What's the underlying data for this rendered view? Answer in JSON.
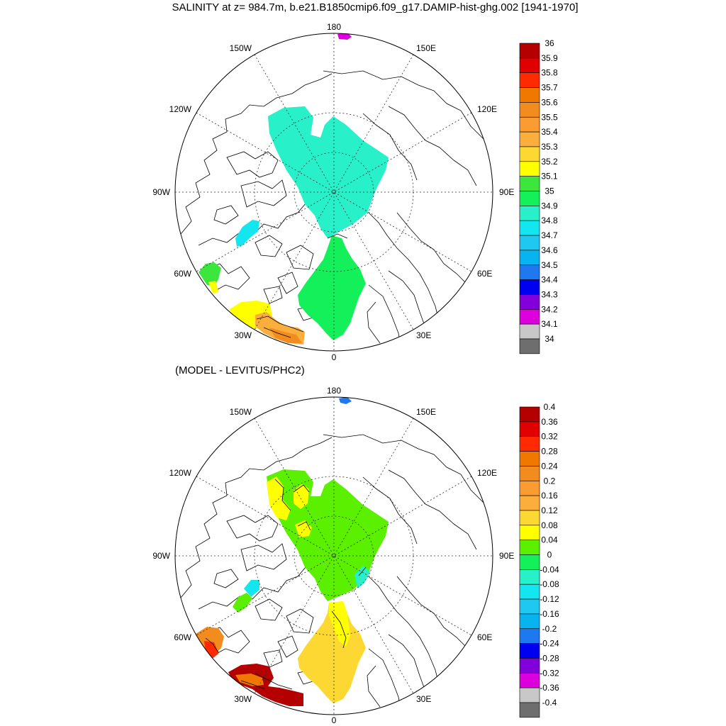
{
  "title": "SALINITY at z= 984.7m, b.e21.B1850cmip6.f09_g17.DAMIP-hist-ghg.002 [1941-1970]",
  "subtitle": "(MODEL - LEVITUS/PHC2)",
  "lon_labels": {
    "top": "180",
    "bottom": "0",
    "left": "90W",
    "right": "90E",
    "w150": "150W",
    "e150": "150E",
    "w120": "120W",
    "e120": "120E",
    "w60": "60W",
    "e60": "60E",
    "w30": "30W",
    "e30": "30E"
  },
  "colorbar_top": {
    "labels": [
      "36",
      "35.9",
      "35.8",
      "35.7",
      "35.6",
      "35.5",
      "35.4",
      "35.3",
      "35.2",
      "35.1",
      "35",
      "34.9",
      "34.8",
      "34.7",
      "34.6",
      "34.5",
      "34.4",
      "34.3",
      "34.2",
      "34.1",
      "34"
    ],
    "colors": [
      "#b40000",
      "#e00000",
      "#ff2a00",
      "#f07800",
      "#f28c1e",
      "#fa9c32",
      "#fbae3c",
      "#fdd832",
      "#ffff00",
      "#3ce63c",
      "#14f05a",
      "#28f0c8",
      "#14e6f0",
      "#1ec8f0",
      "#08b4f0",
      "#1e78f0",
      "#0000f0",
      "#8200dc",
      "#dc00dc",
      "#c8c8c8",
      "#6e6e6e"
    ]
  },
  "colorbar_bottom": {
    "labels": [
      "0.4",
      "0.36",
      "0.32",
      "0.28",
      "0.24",
      "0.2",
      "0.16",
      "0.12",
      "0.08",
      "0.04",
      "0",
      "-0.04",
      "-0.08",
      "-0.12",
      "-0.16",
      "-0.2",
      "-0.24",
      "-0.28",
      "-0.32",
      "-0.36",
      "-0.4"
    ],
    "colors": [
      "#b40000",
      "#e00000",
      "#ff2a00",
      "#f07800",
      "#f28c1e",
      "#fa9c32",
      "#fbae3c",
      "#fdd832",
      "#ffff00",
      "#5af000",
      "#14f05a",
      "#28f0c8",
      "#14e6f0",
      "#1ec8f0",
      "#08b4f0",
      "#1e78f0",
      "#0000f0",
      "#8200dc",
      "#dc00dc",
      "#c8c8c8",
      "#6e6e6e"
    ]
  }
}
